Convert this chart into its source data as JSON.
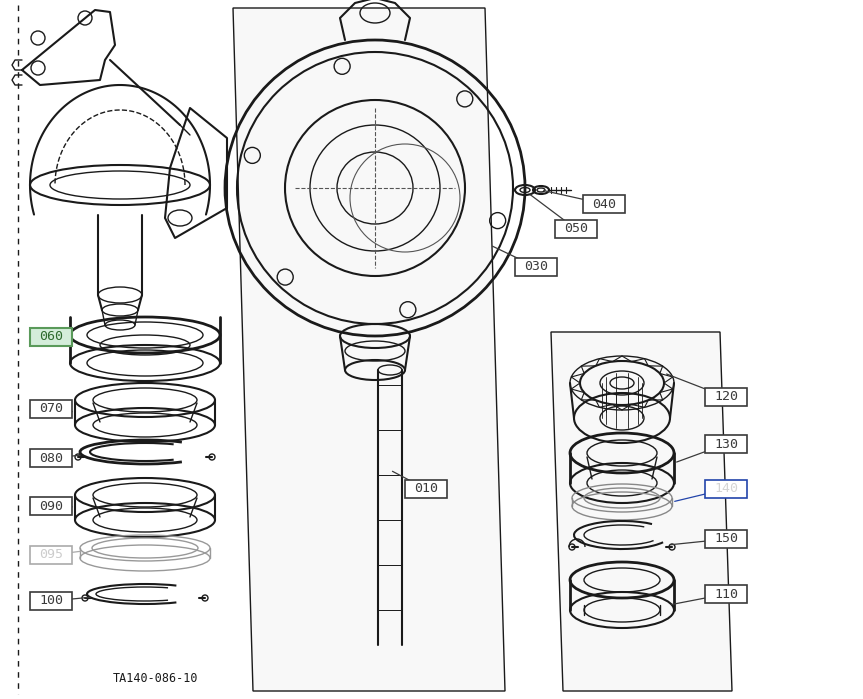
{
  "diagram_code": "TA140-086-10",
  "background_color": "#ffffff",
  "line_color": "#1a1a1a",
  "label_color": "#3a3a3a",
  "faded_label_color": "#aaaaaa",
  "special_060_bg": "#d4edda",
  "special_060_border": "#5a9a5a",
  "blue_border": "#2244aa",
  "figsize": [
    8.63,
    6.99
  ],
  "dpi": 100
}
